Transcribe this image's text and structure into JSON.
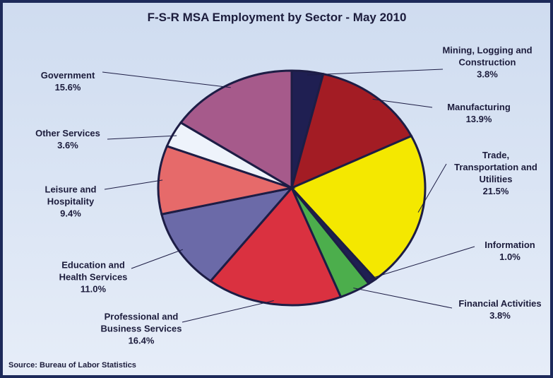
{
  "chart_data": {
    "type": "pie",
    "title": "F-S-R MSA Employment by Sector - May 2010",
    "categories": [
      "Mining, Logging and Construction",
      "Manufacturing",
      "Trade, Transportation and Utilities",
      "Information",
      "Financial Activities",
      "Professional and Business Services",
      "Education and Health Services",
      "Leisure and Hospitality",
      "Other Services",
      "Government"
    ],
    "values": [
      3.8,
      13.9,
      21.5,
      1.0,
      3.8,
      16.4,
      11.0,
      9.4,
      3.6,
      15.6
    ],
    "value_labels": [
      "3.8%",
      "13.9%",
      "21.5%",
      "1.0%",
      "3.8%",
      "16.4%",
      "11.0%",
      "9.4%",
      "3.6%",
      "15.6%"
    ],
    "colors": [
      "#1f1f52",
      "#a31c24",
      "#f4e800",
      "#1f1f52",
      "#4cae4c",
      "#da3140",
      "#6b6aa8",
      "#e66a6a",
      "#eef3fb",
      "#a65a8b"
    ],
    "source": "Source: Bureau of Labor Statistics"
  }
}
